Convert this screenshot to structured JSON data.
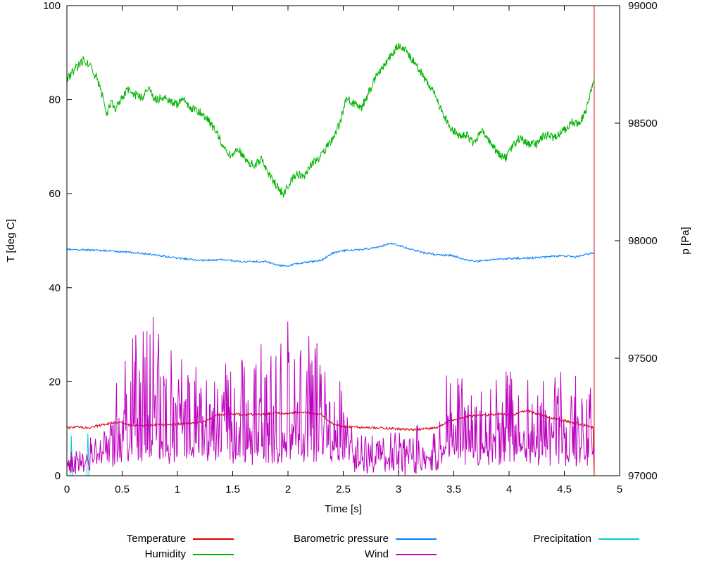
{
  "chart_data": {
    "type": "line",
    "title": "",
    "xlabel": "Time [s]",
    "ylabel_left": "T [deg C]",
    "ylabel_right": "p [Pa]",
    "x_range": [
      0,
      5
    ],
    "y_left_range": [
      0,
      100
    ],
    "y_right_range": [
      97000,
      99000
    ],
    "grid": false,
    "legend_position": "bottom",
    "x_ticks": [
      0,
      0.5,
      1,
      1.5,
      2,
      2.5,
      3,
      3.5,
      4,
      4.5,
      5
    ],
    "x_tick_labels": [
      "0",
      "0.5",
      "1",
      "1.5",
      "2",
      "2.5",
      "3",
      "3.5",
      "4",
      "4.5",
      "5"
    ],
    "y_left_ticks": [
      0,
      20,
      40,
      60,
      80,
      100
    ],
    "y_left_tick_labels": [
      "0",
      "20",
      "40",
      "60",
      "80",
      "100"
    ],
    "y_right_ticks": [
      97000,
      97500,
      98000,
      98500,
      99000
    ],
    "y_right_tick_labels": [
      "97000",
      "97500",
      "98000",
      "98500",
      "99000"
    ],
    "series": [
      {
        "name": "Precipitation",
        "color": "#00cdcd",
        "axis": "left",
        "anchors": [
          [
            0,
            0
          ],
          [
            0.03,
            0
          ],
          [
            0.04,
            8.5
          ],
          [
            0.05,
            0
          ],
          [
            0.18,
            0
          ],
          [
            0.19,
            9
          ],
          [
            0.2,
            0
          ],
          [
            4.77,
            0
          ]
        ]
      },
      {
        "name": "Temperature",
        "color": "#dc0000",
        "axis": "left",
        "noise": 0.25,
        "samples": 900,
        "anchors": [
          [
            0,
            10.2
          ],
          [
            0.1,
            10.4
          ],
          [
            0.2,
            10.2
          ],
          [
            0.3,
            10.7
          ],
          [
            0.4,
            11.2
          ],
          [
            0.5,
            11.3
          ],
          [
            0.55,
            10.8
          ],
          [
            0.7,
            10.7
          ],
          [
            0.9,
            10.9
          ],
          [
            1.0,
            11.0
          ],
          [
            1.1,
            11.2
          ],
          [
            1.25,
            11.5
          ],
          [
            1.35,
            12.9
          ],
          [
            1.45,
            13.2
          ],
          [
            1.6,
            13.0
          ],
          [
            1.75,
            13.1
          ],
          [
            1.9,
            13.3
          ],
          [
            2.0,
            13.2
          ],
          [
            2.1,
            13.5
          ],
          [
            2.2,
            13.3
          ],
          [
            2.3,
            13.1
          ],
          [
            2.4,
            11.0
          ],
          [
            2.5,
            10.4
          ],
          [
            2.7,
            10.3
          ],
          [
            2.9,
            10.1
          ],
          [
            3.05,
            9.9
          ],
          [
            3.2,
            9.8
          ],
          [
            3.35,
            10.3
          ],
          [
            3.45,
            11.5
          ],
          [
            3.55,
            12.3
          ],
          [
            3.65,
            12.7
          ],
          [
            3.8,
            12.9
          ],
          [
            3.95,
            13.1
          ],
          [
            4.05,
            13.0
          ],
          [
            4.15,
            13.9
          ],
          [
            4.25,
            13.2
          ],
          [
            4.35,
            12.4
          ],
          [
            4.5,
            11.7
          ],
          [
            4.6,
            11.2
          ],
          [
            4.7,
            10.6
          ],
          [
            4.76,
            10.2
          ]
        ],
        "end_points": [
          [
            4.77,
            0
          ],
          [
            4.77,
            100
          ]
        ]
      },
      {
        "name": "Humidity",
        "color": "#00b400",
        "axis": "left",
        "noise": 0.9,
        "samples": 1100,
        "anchors": [
          [
            0,
            84
          ],
          [
            0.05,
            86
          ],
          [
            0.1,
            87
          ],
          [
            0.15,
            88.5
          ],
          [
            0.2,
            87.5
          ],
          [
            0.27,
            84.5
          ],
          [
            0.32,
            81
          ],
          [
            0.36,
            76.5
          ],
          [
            0.4,
            79.5
          ],
          [
            0.44,
            78
          ],
          [
            0.5,
            80.5
          ],
          [
            0.55,
            82
          ],
          [
            0.62,
            81
          ],
          [
            0.68,
            80.5
          ],
          [
            0.74,
            82
          ],
          [
            0.8,
            80
          ],
          [
            0.87,
            80.5
          ],
          [
            0.95,
            79.5
          ],
          [
            1.0,
            79
          ],
          [
            1.05,
            80.5
          ],
          [
            1.12,
            78
          ],
          [
            1.2,
            77.5
          ],
          [
            1.3,
            75
          ],
          [
            1.4,
            71
          ],
          [
            1.48,
            68
          ],
          [
            1.55,
            69.5
          ],
          [
            1.62,
            67
          ],
          [
            1.7,
            66
          ],
          [
            1.76,
            67.5
          ],
          [
            1.82,
            64.5
          ],
          [
            1.9,
            61.5
          ],
          [
            1.96,
            60
          ],
          [
            2.02,
            62.5
          ],
          [
            2.08,
            64.5
          ],
          [
            2.14,
            63.5
          ],
          [
            2.2,
            66
          ],
          [
            2.3,
            68
          ],
          [
            2.4,
            71.5
          ],
          [
            2.47,
            75
          ],
          [
            2.53,
            80.5
          ],
          [
            2.6,
            79
          ],
          [
            2.66,
            78
          ],
          [
            2.72,
            81
          ],
          [
            2.8,
            85
          ],
          [
            2.9,
            88.5
          ],
          [
            3.0,
            91.5
          ],
          [
            3.08,
            90
          ],
          [
            3.16,
            87.5
          ],
          [
            3.25,
            84
          ],
          [
            3.33,
            81
          ],
          [
            3.4,
            77
          ],
          [
            3.47,
            74
          ],
          [
            3.55,
            72.5
          ],
          [
            3.62,
            72.5
          ],
          [
            3.68,
            70.5
          ],
          [
            3.75,
            73.5
          ],
          [
            3.82,
            71.5
          ],
          [
            3.9,
            68.5
          ],
          [
            3.97,
            67.5
          ],
          [
            4.03,
            70
          ],
          [
            4.1,
            72
          ],
          [
            4.17,
            70.5
          ],
          [
            4.25,
            70.5
          ],
          [
            4.32,
            72.5
          ],
          [
            4.4,
            72
          ],
          [
            4.5,
            73.5
          ],
          [
            4.57,
            75.5
          ],
          [
            4.63,
            74.5
          ],
          [
            4.7,
            78
          ],
          [
            4.77,
            84
          ]
        ]
      },
      {
        "name": "Barometric pressure",
        "color": "#0080ff",
        "axis": "right",
        "noise": 4,
        "samples": 900,
        "anchors": [
          [
            0,
            97964
          ],
          [
            0.2,
            97960
          ],
          [
            0.4,
            97956
          ],
          [
            0.6,
            97950
          ],
          [
            0.8,
            97940
          ],
          [
            1.0,
            97926
          ],
          [
            1.2,
            97916
          ],
          [
            1.4,
            97920
          ],
          [
            1.6,
            97910
          ],
          [
            1.8,
            97912
          ],
          [
            1.9,
            97896
          ],
          [
            2.0,
            97892
          ],
          [
            2.1,
            97904
          ],
          [
            2.3,
            97916
          ],
          [
            2.4,
            97946
          ],
          [
            2.5,
            97958
          ],
          [
            2.6,
            97960
          ],
          [
            2.8,
            97970
          ],
          [
            2.9,
            97984
          ],
          [
            2.95,
            97988
          ],
          [
            3.05,
            97972
          ],
          [
            3.2,
            97952
          ],
          [
            3.35,
            97940
          ],
          [
            3.5,
            97936
          ],
          [
            3.6,
            97918
          ],
          [
            3.7,
            97912
          ],
          [
            3.85,
            97920
          ],
          [
            4.0,
            97924
          ],
          [
            4.2,
            97926
          ],
          [
            4.35,
            97932
          ],
          [
            4.5,
            97936
          ],
          [
            4.6,
            97930
          ],
          [
            4.7,
            97942
          ],
          [
            4.77,
            97950
          ]
        ]
      },
      {
        "name": "Wind",
        "color": "#bd00bd",
        "axis": "left",
        "noise": 2,
        "samples": 850,
        "clamp_min": 0,
        "clamp_max": 100,
        "spike_power": 2.2,
        "base_anchors": [
          [
            0,
            1.5
          ],
          [
            0.15,
            2.5
          ],
          [
            0.4,
            3
          ],
          [
            0.5,
            4
          ],
          [
            2.5,
            4
          ],
          [
            2.6,
            2
          ],
          [
            3.3,
            2
          ],
          [
            3.45,
            4
          ],
          [
            4.77,
            4
          ]
        ],
        "spike_anchors": [
          [
            0,
            3
          ],
          [
            0.35,
            6
          ],
          [
            0.5,
            24
          ],
          [
            0.75,
            28
          ],
          [
            0.9,
            32
          ],
          [
            1.05,
            20
          ],
          [
            1.3,
            18
          ],
          [
            1.5,
            24
          ],
          [
            1.8,
            26
          ],
          [
            2.0,
            29
          ],
          [
            2.3,
            27
          ],
          [
            2.5,
            14
          ],
          [
            2.6,
            7
          ],
          [
            3.0,
            7
          ],
          [
            3.35,
            8
          ],
          [
            3.45,
            22
          ],
          [
            3.6,
            15
          ],
          [
            3.85,
            20
          ],
          [
            4.1,
            18
          ],
          [
            4.4,
            16
          ],
          [
            4.6,
            18
          ],
          [
            4.77,
            15
          ]
        ]
      }
    ]
  },
  "legend": {
    "entries": [
      {
        "label": "Temperature",
        "color": "#dc0000"
      },
      {
        "label": "Humidity",
        "color": "#00b400"
      },
      {
        "label": "Barometric pressure",
        "color": "#0080ff"
      },
      {
        "label": "Wind",
        "color": "#bd00bd"
      },
      {
        "label": "Precipitation",
        "color": "#00cdcd"
      }
    ]
  },
  "colors": {
    "background": "#ffffff",
    "axis": "#000000"
  }
}
